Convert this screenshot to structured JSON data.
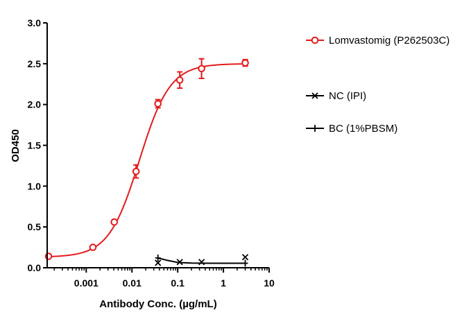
{
  "chart_data": {
    "type": "scatter",
    "title": "",
    "xlabel": "Antibody Conc. (µg/mL)",
    "ylabel": "OD450",
    "x_scale": "log",
    "xlim": [
      0.00015,
      10
    ],
    "ylim": [
      0,
      3.0
    ],
    "x_ticks": [
      0.001,
      0.01,
      0.1,
      1,
      10
    ],
    "x_tick_labels": [
      "0.001",
      "0.01",
      "0.1",
      "1",
      "10"
    ],
    "y_ticks": [
      0,
      0.5,
      1.0,
      1.5,
      2.0,
      2.5,
      3.0
    ],
    "y_tick_labels": [
      "0.0",
      "0.5",
      "1.0",
      "1.5",
      "2.0",
      "2.5",
      "3.0"
    ],
    "grid": false,
    "legend_position": "right",
    "series": [
      {
        "name": "Lomvastomig (P262503C)",
        "color": "#e41a1c",
        "marker": "open-circle",
        "fit": "sigmoidal-4pl",
        "fit_params": {
          "bottom": 0.13,
          "top": 2.5,
          "ec50": 0.0145,
          "hill": 1.3
        },
        "points": [
          {
            "x": 0.00015,
            "y": 0.14,
            "err": 0.01
          },
          {
            "x": 0.0014,
            "y": 0.25,
            "err": 0.01
          },
          {
            "x": 0.0041,
            "y": 0.56,
            "err": 0.01
          },
          {
            "x": 0.0123,
            "y": 1.18,
            "err": 0.08
          },
          {
            "x": 0.037,
            "y": 2.01,
            "err": 0.05
          },
          {
            "x": 0.111,
            "y": 2.3,
            "err": 0.1
          },
          {
            "x": 0.333,
            "y": 2.44,
            "err": 0.12
          },
          {
            "x": 3.0,
            "y": 2.51,
            "err": 0.04
          }
        ]
      },
      {
        "name": "NC (IPI)",
        "color": "#000000",
        "marker": "x",
        "points": [
          {
            "x": 0.037,
            "y": 0.06
          },
          {
            "x": 0.111,
            "y": 0.07
          },
          {
            "x": 0.333,
            "y": 0.07
          },
          {
            "x": 3.0,
            "y": 0.13
          }
        ]
      },
      {
        "name": "BC (1%PBSM)",
        "color": "#000000",
        "marker": "plus",
        "fit_line": [
          {
            "x": 0.037,
            "y": 0.12
          },
          {
            "x": 0.06,
            "y": 0.09
          },
          {
            "x": 0.1,
            "y": 0.065
          },
          {
            "x": 0.2,
            "y": 0.057
          },
          {
            "x": 0.5,
            "y": 0.055
          },
          {
            "x": 3.0,
            "y": 0.055
          }
        ],
        "points": [
          {
            "x": 0.037,
            "y": 0.12
          },
          {
            "x": 3.0,
            "y": 0.055
          }
        ]
      }
    ]
  }
}
